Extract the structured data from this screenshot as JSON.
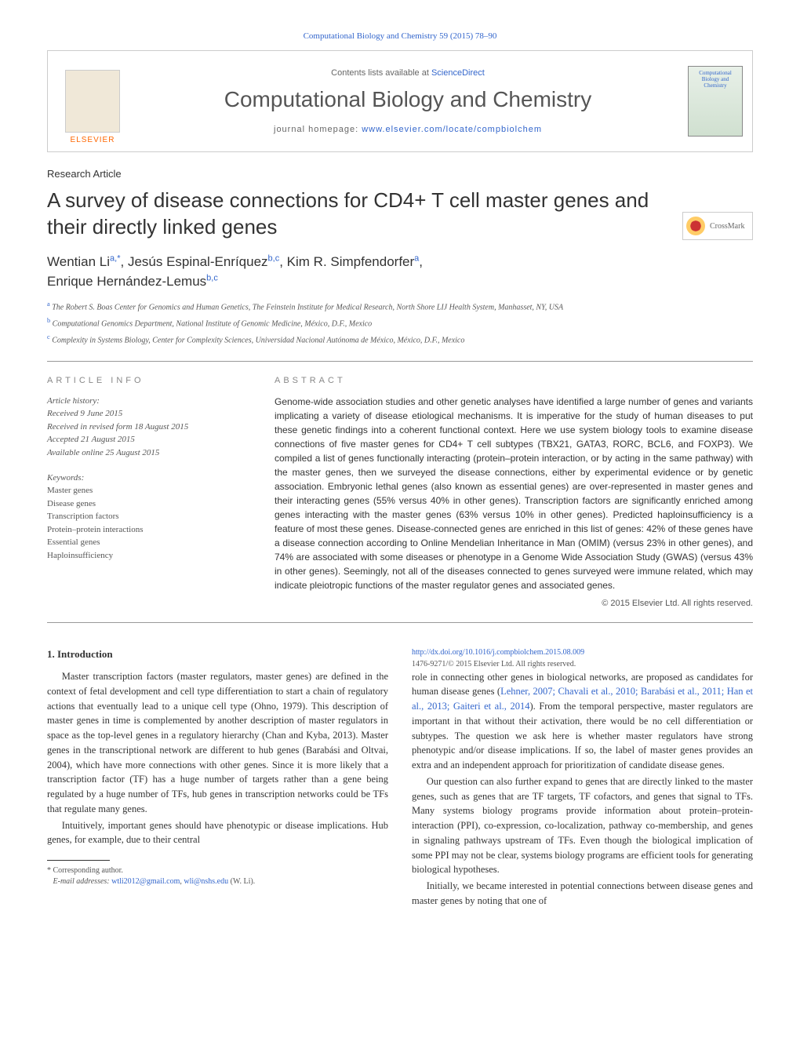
{
  "header": {
    "citation": "Computational Biology and Chemistry 59 (2015) 78–90",
    "contents_prefix": "Contents lists available at ",
    "contents_link": "ScienceDirect",
    "journal_name": "Computational Biology and Chemistry",
    "homepage_prefix": "journal homepage: ",
    "homepage_url": "www.elsevier.com/locate/compbiolchem",
    "publisher": "ELSEVIER",
    "cover_text": "Computational Biology and Chemistry"
  },
  "article": {
    "type": "Research Article",
    "title": "A survey of disease connections for CD4+ T cell master genes and their directly linked genes",
    "crossmark_label": "CrossMark",
    "authors_html": "Wentian Li",
    "author_1": "Wentian Li",
    "author_1_sup": "a,*",
    "author_2": "Jesús Espinal-Enríquez",
    "author_2_sup": "b,c",
    "author_3": "Kim R. Simpfendorfer",
    "author_3_sup": "a",
    "author_4": "Enrique Hernández-Lemus",
    "author_4_sup": "b,c",
    "affil_a": "The Robert S. Boas Center for Genomics and Human Genetics, The Feinstein Institute for Medical Research, North Shore LIJ Health System, Manhasset, NY, USA",
    "affil_b": "Computational Genomics Department, National Institute of Genomic Medicine, México, D.F., Mexico",
    "affil_c": "Complexity in Systems Biology, Center for Complexity Sciences, Universidad Nacional Autónoma de México, México, D.F., Mexico"
  },
  "info": {
    "heading": "ARTICLE INFO",
    "history_label": "Article history:",
    "received": "Received 9 June 2015",
    "revised": "Received in revised form 18 August 2015",
    "accepted": "Accepted 21 August 2015",
    "online": "Available online 25 August 2015",
    "keywords_label": "Keywords:",
    "keywords": [
      "Master genes",
      "Disease genes",
      "Transcription factors",
      "Protein–protein interactions",
      "Essential genes",
      "Haploinsufficiency"
    ]
  },
  "abstract": {
    "heading": "ABSTRACT",
    "text": "Genome-wide association studies and other genetic analyses have identified a large number of genes and variants implicating a variety of disease etiological mechanisms. It is imperative for the study of human diseases to put these genetic findings into a coherent functional context. Here we use system biology tools to examine disease connections of five master genes for CD4+ T cell subtypes (TBX21, GATA3, RORC, BCL6, and FOXP3). We compiled a list of genes functionally interacting (protein–protein interaction, or by acting in the same pathway) with the master genes, then we surveyed the disease connections, either by experimental evidence or by genetic association. Embryonic lethal genes (also known as essential genes) are over-represented in master genes and their interacting genes (55% versus 40% in other genes). Transcription factors are significantly enriched among genes interacting with the master genes (63% versus 10% in other genes). Predicted haploinsufficiency is a feature of most these genes. Disease-connected genes are enriched in this list of genes: 42% of these genes have a disease connection according to Online Mendelian Inheritance in Man (OMIM) (versus 23% in other genes), and 74% are associated with some diseases or phenotype in a Genome Wide Association Study (GWAS) (versus 43% in other genes). Seemingly, not all of the diseases connected to genes surveyed were immune related, which may indicate pleiotropic functions of the master regulator genes and associated genes.",
    "copyright": "© 2015 Elsevier Ltd. All rights reserved."
  },
  "body": {
    "section_heading": "1. Introduction",
    "p1": "Master transcription factors (master regulators, master genes) are defined in the context of fetal development and cell type differentiation to start a chain of regulatory actions that eventually lead to a unique cell type (Ohno, 1979). This description of master genes in time is complemented by another description of master regulators in space as the top-level genes in a regulatory hierarchy (Chan and Kyba, 2013). Master genes in the transcriptional network are different to hub genes (Barabási and Oltvai, 2004), which have more connections with other genes. Since it is more likely that a transcription factor (TF) has a huge number of targets rather than a gene being regulated by a huge number of TFs, hub genes in transcription networks could be TFs that regulate many genes.",
    "p2": "Intuitively, important genes should have phenotypic or disease implications. Hub genes, for example, due to their central",
    "p3_prefix": "role in connecting other genes in biological networks, are proposed as candidates for human disease genes (",
    "p3_refs": "Lehner, 2007; Chavali et al., 2010; Barabási et al., 2011; Han et al., 2013; Gaiteri et al., 2014",
    "p3_suffix": "). From the temporal perspective, master regulators are important in that without their activation, there would be no cell differentiation or subtypes. The question we ask here is whether master regulators have strong phenotypic and/or disease implications. If so, the label of master genes provides an extra and an independent approach for prioritization of candidate disease genes.",
    "p4": "Our question can also further expand to genes that are directly linked to the master genes, such as genes that are TF targets, TF cofactors, and genes that signal to TFs. Many systems biology programs provide information about protein–protein-interaction (PPI), co-expression, co-localization, pathway co-membership, and genes in signaling pathways upstream of TFs. Even though the biological implication of some PPI may not be clear, systems biology programs are efficient tools for generating biological hypotheses.",
    "p5": "Initially, we became interested in potential connections between disease genes and master genes by noting that one of"
  },
  "footnote": {
    "corresponding": "Corresponding author.",
    "email_label": "E-mail addresses:",
    "email1": "wtli2012@gmail.com",
    "email2": "wli@nshs.edu",
    "email_person": "(W. Li).",
    "doi": "http://dx.doi.org/10.1016/j.compbiolchem.2015.08.009",
    "issn_copyright": "1476-9271/© 2015 Elsevier Ltd. All rights reserved."
  },
  "colors": {
    "link": "#3366cc",
    "orange": "#ff6600",
    "text": "#333333",
    "muted": "#888888"
  }
}
